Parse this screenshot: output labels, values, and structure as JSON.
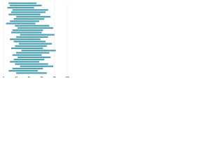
{
  "chart_data": {
    "type": "range-bar",
    "categories": [
      null,
      null,
      null,
      null,
      null,
      null,
      null,
      null,
      null,
      null,
      null,
      null,
      null,
      null,
      null,
      null,
      null,
      null,
      null,
      null,
      null,
      null,
      null,
      null,
      null,
      null,
      null,
      null,
      null,
      null,
      null,
      null
    ],
    "starts": [
      8,
      10,
      6,
      14,
      12,
      8,
      20,
      16,
      10,
      4,
      18,
      22,
      14,
      12,
      26,
      20,
      10,
      16,
      24,
      18,
      12,
      28,
      20,
      14,
      22,
      16,
      10,
      18,
      26,
      14,
      8,
      20
    ],
    "ends": [
      52,
      60,
      48,
      70,
      66,
      58,
      74,
      64,
      56,
      50,
      72,
      78,
      62,
      60,
      80,
      70,
      58,
      66,
      76,
      68,
      62,
      82,
      72,
      60,
      74,
      64,
      56,
      70,
      78,
      62,
      54,
      68
    ],
    "color": "#4fa3b3",
    "xlim": [
      0,
      100
    ],
    "xticks": [
      0,
      20,
      40,
      60,
      80,
      100
    ],
    "grid": true
  }
}
